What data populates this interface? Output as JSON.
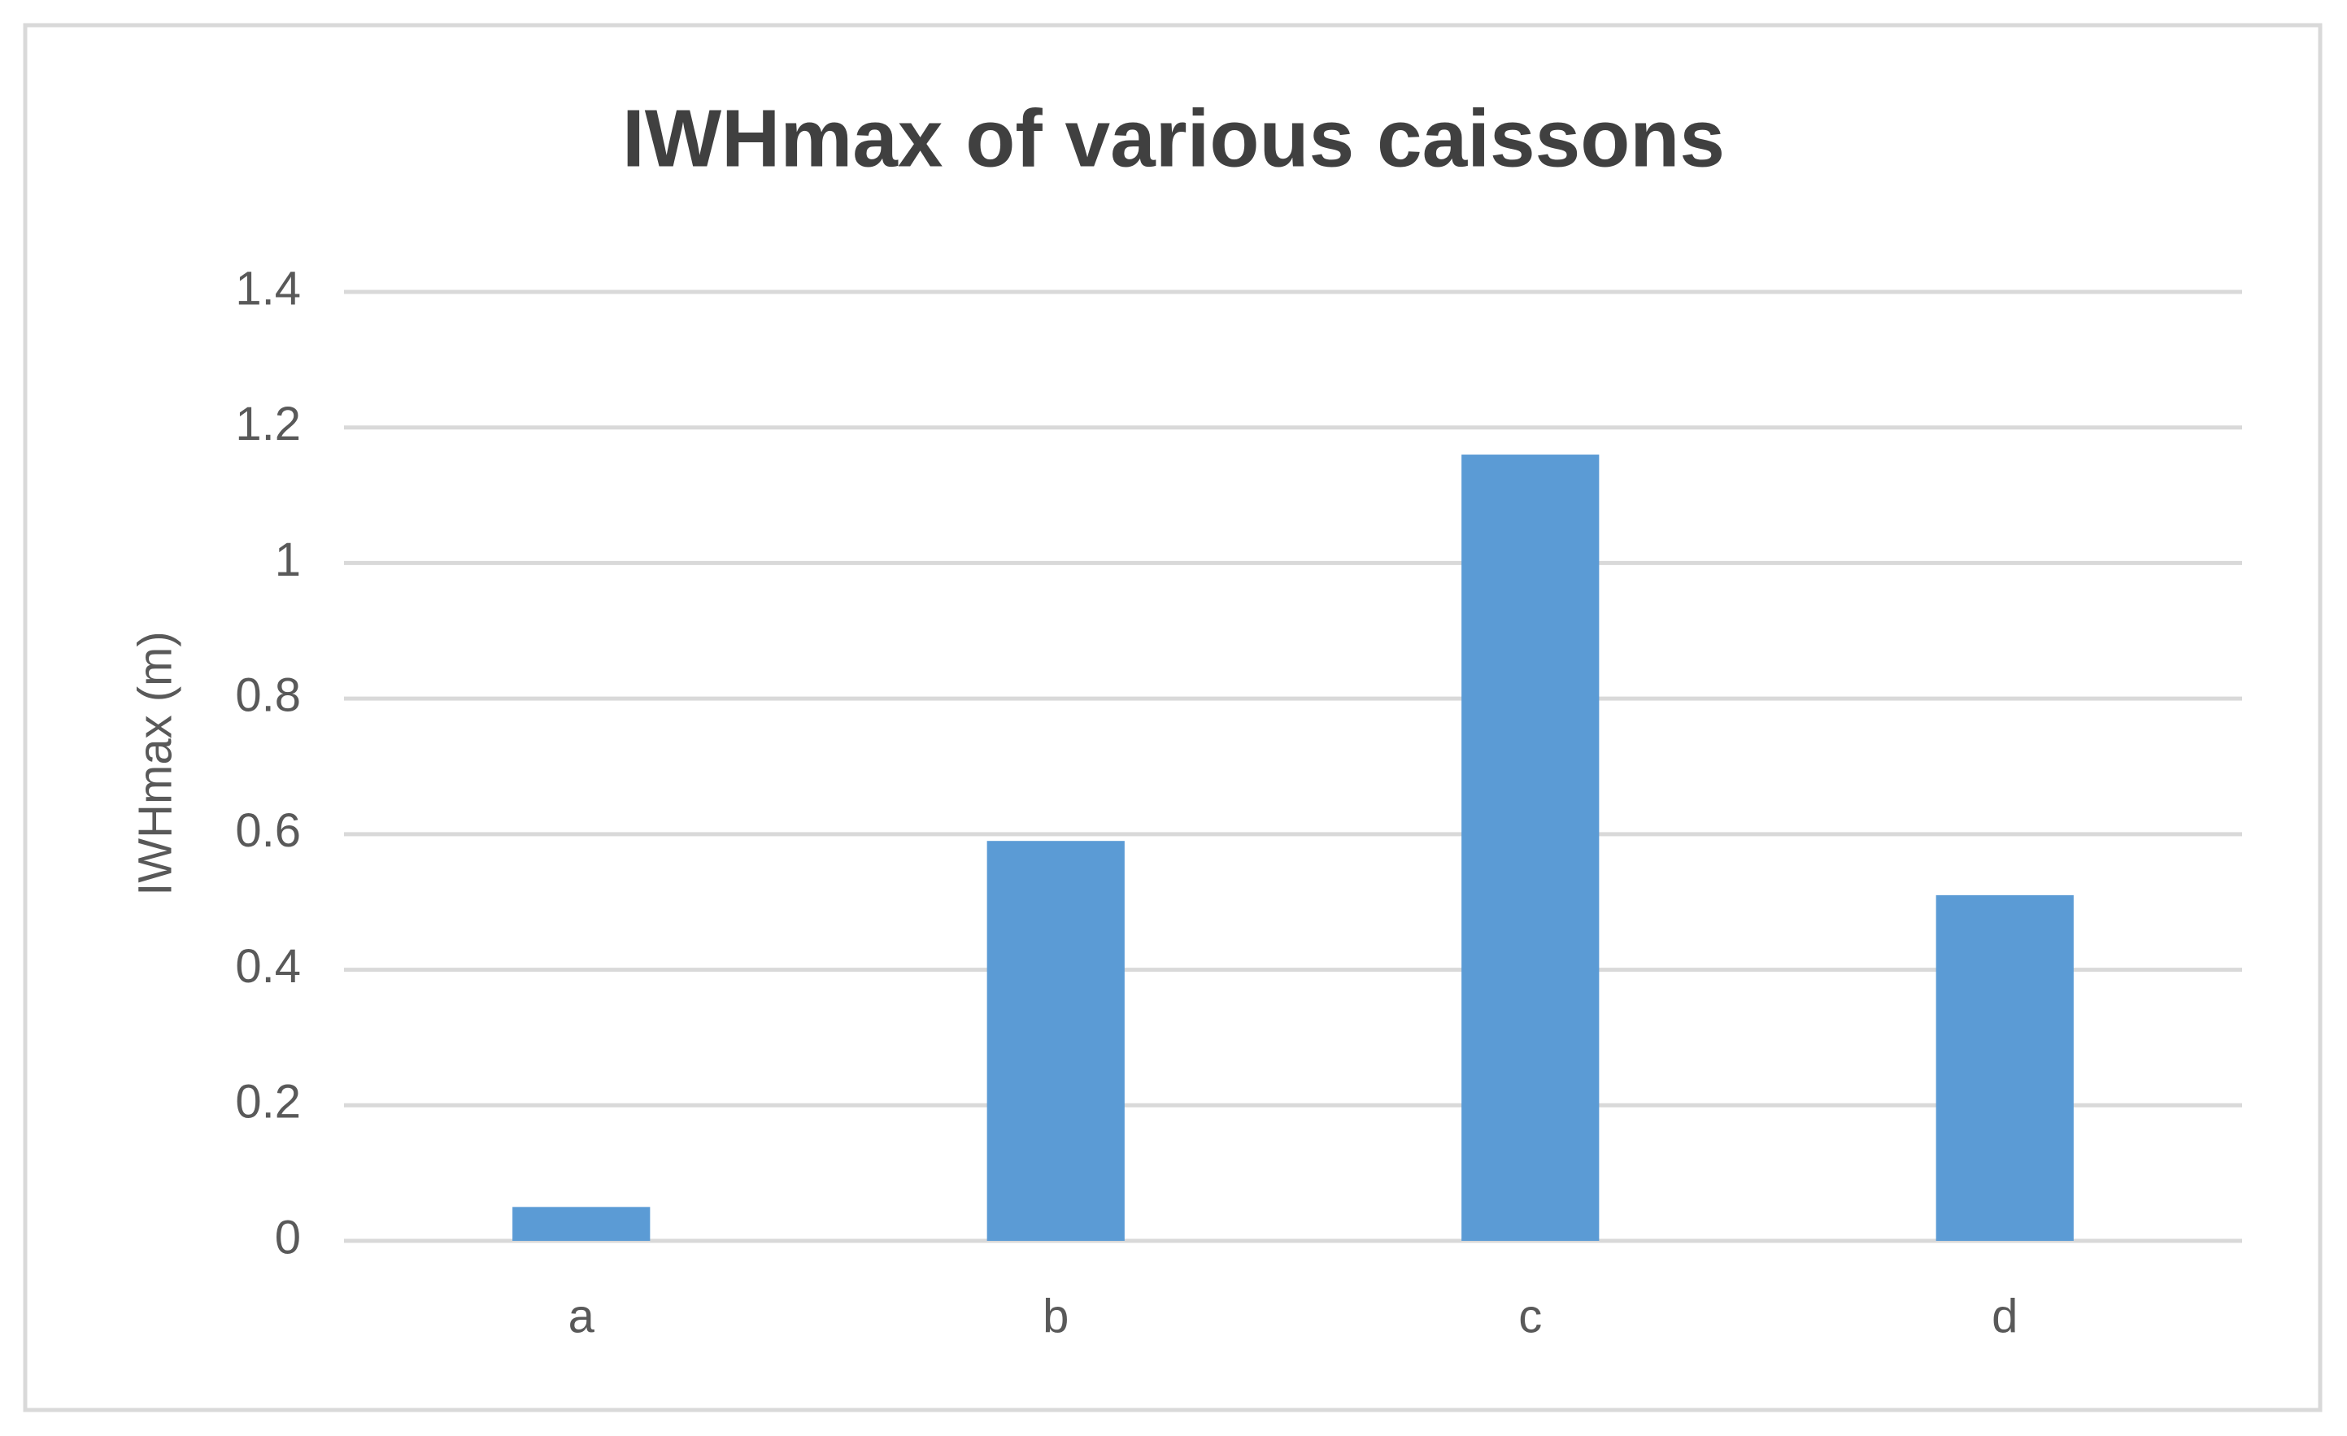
{
  "chart_data": {
    "type": "bar",
    "title": "IWHmax of various caissons",
    "y_label": "IWHmax (m)",
    "categories": [
      "a",
      "b",
      "c",
      "d"
    ],
    "values": [
      0.05,
      0.59,
      1.16,
      0.51
    ],
    "color": "#5b9bd5",
    "ylim": [
      0,
      1.4
    ],
    "yticks": [
      0,
      0.2,
      0.4,
      0.6,
      0.8,
      1,
      1.2,
      1.4
    ],
    "grid": true
  }
}
